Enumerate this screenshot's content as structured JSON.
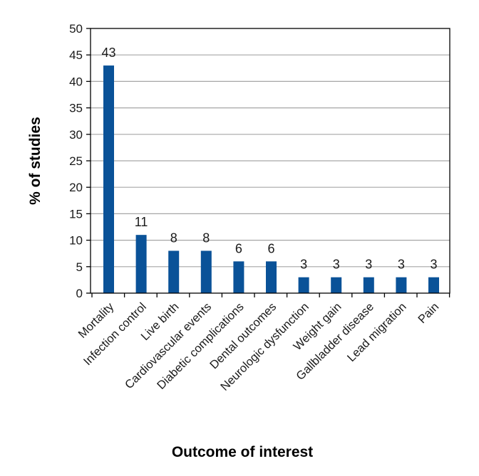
{
  "colors": {
    "bar": "#0a5298",
    "grid": "#a6a6a6",
    "axis": "#000000"
  },
  "chart_data": {
    "type": "bar",
    "title": "",
    "xlabel": "Outcome of interest",
    "ylabel": "% of studies",
    "ylim": [
      0,
      50
    ],
    "yticks": [
      0,
      5,
      10,
      15,
      20,
      25,
      30,
      35,
      40,
      45,
      50
    ],
    "grid": true,
    "categories": [
      "Mortality",
      "Infection control",
      "Live birth",
      "Cardiovascular events",
      "Diabetic complications",
      "Dental outcomes",
      "Neurologic dysfunction",
      "Weight gain",
      "Gallbladder disease",
      "Lead migration",
      "Pain"
    ],
    "values": [
      43,
      11,
      8,
      8,
      6,
      6,
      3,
      3,
      3,
      3,
      3
    ],
    "data_labels": [
      "43",
      "11",
      "8",
      "8",
      "6",
      "6",
      "3",
      "3",
      "3",
      "3",
      "3"
    ]
  }
}
